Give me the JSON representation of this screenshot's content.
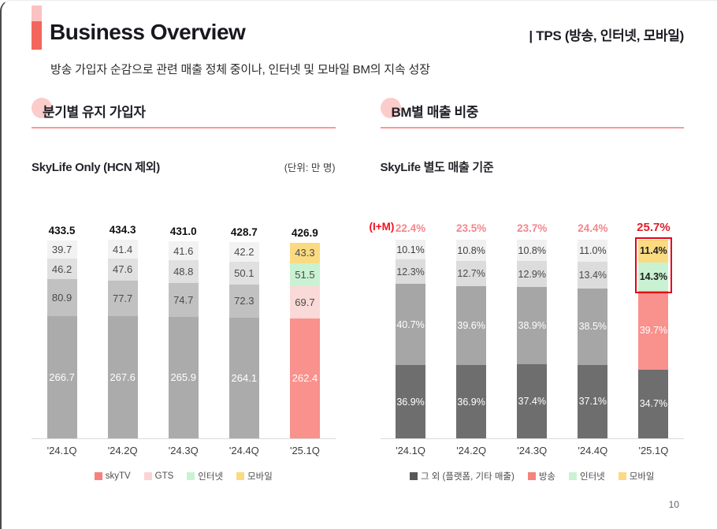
{
  "page_number": "10",
  "header": {
    "title": "Business Overview",
    "right_label": "| TPS (방송, 인터넷, 모바일)",
    "subtitle": "방송 가입자 순감으로 관련 매출 정체 중이나, 인터넷 및 모바일 BM의 지속 성장"
  },
  "left_section": {
    "title": "분기별 유지 가입자",
    "subtitle": "SkyLife Only (HCN 제외)",
    "unit_note": "(단위: 만 명)",
    "legend": [
      {
        "label": "skyTV",
        "color": "#F5827C"
      },
      {
        "label": "GTS",
        "color": "#FAD4D4"
      },
      {
        "label": "인터넷",
        "color": "#C9F2D2"
      },
      {
        "label": "모바일",
        "color": "#FADB82"
      }
    ]
  },
  "right_section": {
    "title": "BM별 매출 비중",
    "subtitle": "SkyLife 별도 매출 기준",
    "im_label": "(I+M)",
    "legend": [
      {
        "label": "그 외 (플랫폼, 기타 매출)",
        "color": "#595959"
      },
      {
        "label": "방송",
        "color": "#F5827C"
      },
      {
        "label": "인터넷",
        "color": "#C9F2D2"
      },
      {
        "label": "모바일",
        "color": "#FADB82"
      }
    ]
  },
  "chart_data": [
    {
      "type": "bar",
      "stacked": true,
      "title": "분기별 유지 가입자",
      "subtitle": "SkyLife Only (HCN 제외)",
      "unit": "만 명",
      "categories": [
        "'24.1Q",
        "'24.2Q",
        "'24.3Q",
        "'24.4Q",
        "'25.1Q"
      ],
      "totals": [
        "433.5",
        "434.3",
        "431.0",
        "428.7",
        "426.9"
      ],
      "highlight_category": "'25.1Q",
      "legend_position": "bottom",
      "series": [
        {
          "name": "skyTV",
          "values": [
            "266.7",
            "267.6",
            "265.9",
            "264.1",
            "262.4"
          ],
          "color_gray": "#ABABAB",
          "color_highlight": "#F9918D",
          "text_color": "#FFFFFF"
        },
        {
          "name": "GTS",
          "values": [
            "80.9",
            "77.7",
            "74.7",
            "72.3",
            "69.7"
          ],
          "color_gray": "#C1C1C1",
          "color_highlight": "#FAD9D9",
          "text_color": "#4A4A4A"
        },
        {
          "name": "인터넷",
          "values": [
            "46.2",
            "47.6",
            "48.8",
            "50.1",
            "51.5"
          ],
          "color_gray": "#E0E0E0",
          "color_highlight": "#C9F2D2",
          "text_color": "#4A4A4A"
        },
        {
          "name": "모바일",
          "values": [
            "39.7",
            "41.4",
            "41.6",
            "42.2",
            "43.3"
          ],
          "color_gray": "#F2F2F2",
          "color_highlight": "#FADB82",
          "text_color": "#4A4A4A"
        }
      ]
    },
    {
      "type": "bar",
      "stacked": true,
      "title": "BM별 매출 비중",
      "subtitle": "SkyLife 별도 매출 기준",
      "ylim": [
        0,
        100
      ],
      "categories": [
        "'24.1Q",
        "'24.2Q",
        "'24.3Q",
        "'24.4Q",
        "'25.1Q"
      ],
      "totals": [
        "22.4%",
        "23.5%",
        "23.7%",
        "24.4%",
        "25.7%"
      ],
      "totals_label": "(I+M)",
      "highlight_category": "'25.1Q",
      "highlight_box_series": [
        "인터넷",
        "모바일"
      ],
      "legend_position": "bottom",
      "series": [
        {
          "name": "그 외 (플랫폼, 기타 매출)",
          "values": [
            "36.9%",
            "36.9%",
            "37.4%",
            "37.1%",
            "34.7%"
          ],
          "color_gray": "#6E6E6E",
          "color_highlight": "#6E6E6E",
          "text_color": "#FFFFFF"
        },
        {
          "name": "방송",
          "values": [
            "40.7%",
            "39.6%",
            "38.9%",
            "38.5%",
            "39.7%"
          ],
          "color_gray": "#A6A6A6",
          "color_highlight": "#F9918D",
          "text_color": "#FFFFFF"
        },
        {
          "name": "인터넷",
          "values": [
            "12.3%",
            "12.7%",
            "12.9%",
            "13.4%",
            "14.3%"
          ],
          "color_gray": "#DCDCDC",
          "color_highlight": "#C9F2D2",
          "text_color": "#4A4A4A"
        },
        {
          "name": "모바일",
          "values": [
            "10.1%",
            "10.8%",
            "10.8%",
            "11.0%",
            "11.4%"
          ],
          "color_gray": "#F0F0F0",
          "color_highlight": "#FADB82",
          "text_color": "#3F3F3F"
        }
      ]
    }
  ],
  "colors": {
    "accent_red": "#F2665E",
    "accent_pink": "#FAC2C2",
    "underline_pink": "#F59B9B",
    "dot_pink": "#F9C3C1",
    "im_label_red": "#F50F1E",
    "im_value_pink": "#F4868E",
    "im_highlight_red": "#DF202B",
    "highlight_box_red": "#E70013",
    "axis_line": "#D9D9D9",
    "title_text": "#17171F",
    "page_number_gray": "#5B6472"
  }
}
